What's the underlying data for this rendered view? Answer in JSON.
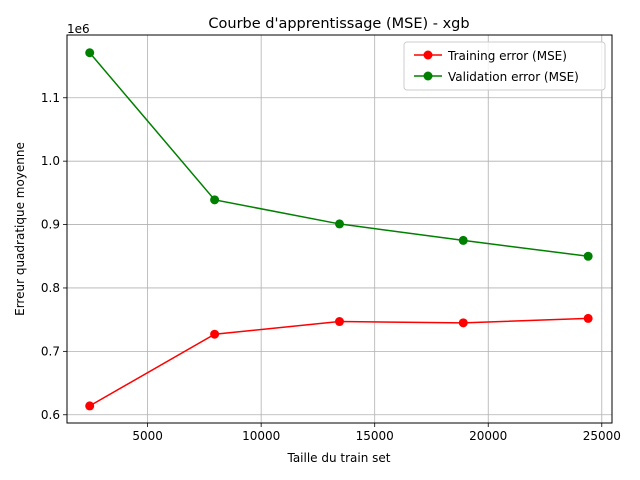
{
  "chart_data": {
    "type": "line",
    "title": "Courbe d'apprentissage (MSE) - xgb",
    "xlabel": "Taille du train set",
    "ylabel": "Erreur quadratique moyenne",
    "y_offset_label": "1e6",
    "xlim": [
      1450,
      25450
    ],
    "ylim": [
      587000,
      1199000
    ],
    "xticks": [
      5000,
      10000,
      15000,
      20000,
      25000
    ],
    "xtick_labels": [
      "5000",
      "10000",
      "15000",
      "20000",
      "25000"
    ],
    "yticks": [
      600000,
      700000,
      800000,
      900000,
      1000000,
      1100000
    ],
    "ytick_labels": [
      "0.6",
      "0.7",
      "0.8",
      "0.9",
      "1.0",
      "1.1"
    ],
    "grid": true,
    "legend_position": "top-right",
    "x": [
      2450,
      7950,
      13450,
      18900,
      24400
    ],
    "series": [
      {
        "name": "Training error (MSE)",
        "color": "#ff0000",
        "values": [
          614000,
          727000,
          747000,
          745000,
          752000
        ]
      },
      {
        "name": "Validation error (MSE)",
        "color": "#008000",
        "values": [
          1171000,
          939000,
          901000,
          875000,
          850000
        ]
      }
    ]
  }
}
